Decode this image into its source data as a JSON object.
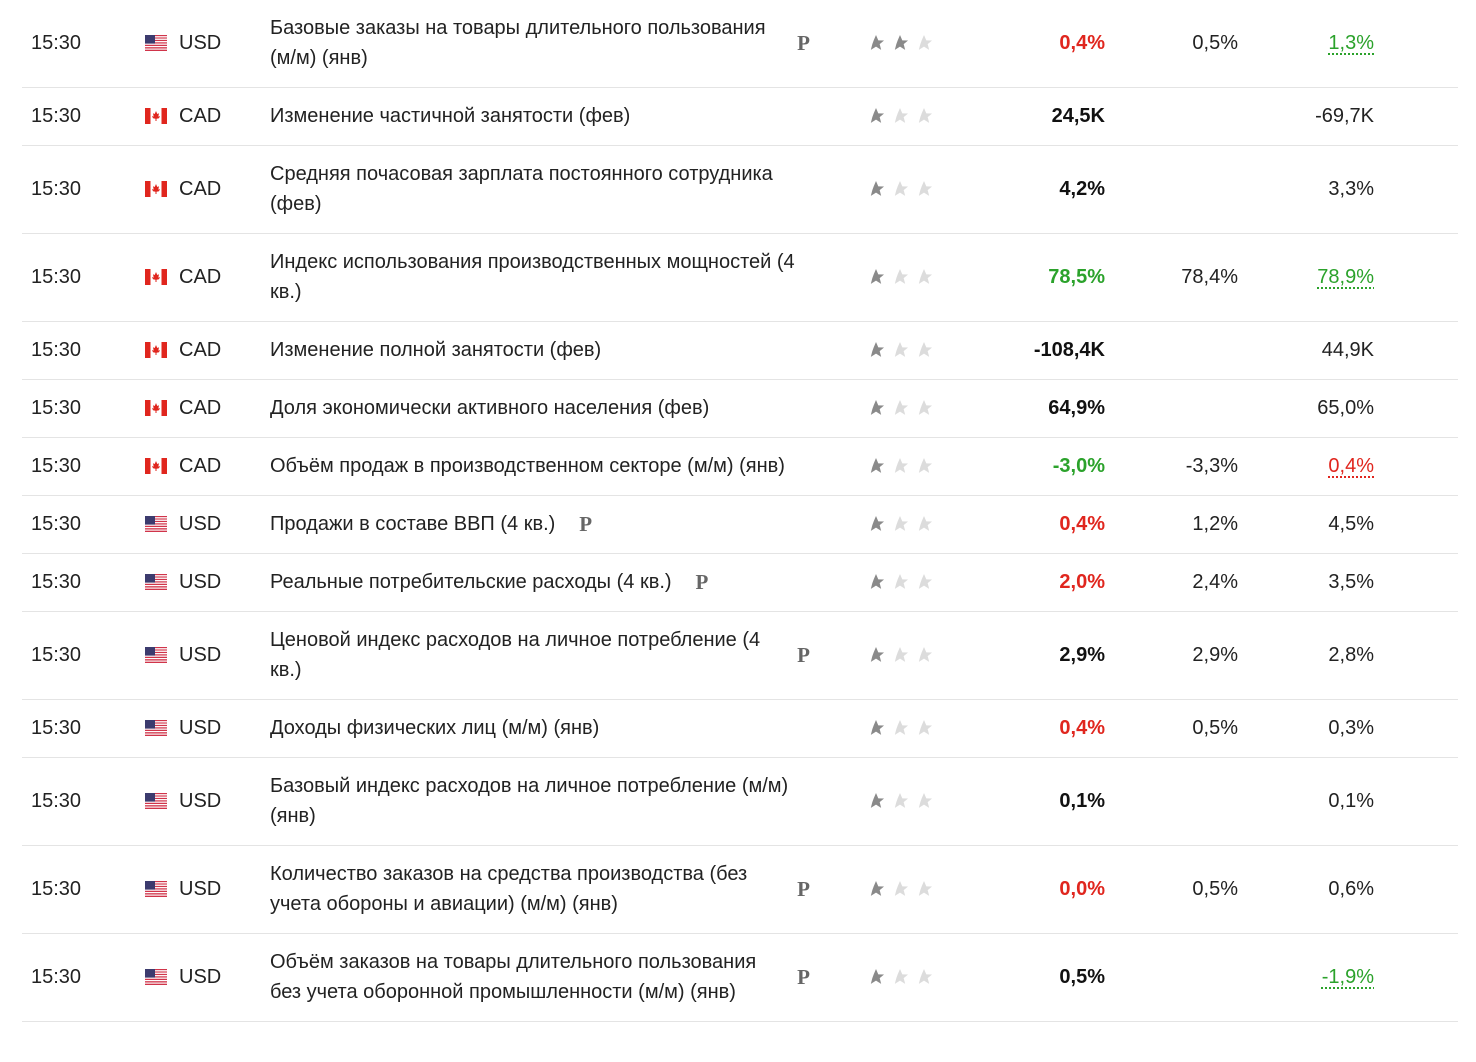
{
  "table": {
    "rows": [
      {
        "time": "15:30",
        "currency": "USD",
        "event": "Базовые заказы на товары длительного пользования (м/м) (янв)",
        "mark": "P",
        "importance": 2,
        "actual": "0,4%",
        "actual_color": "#e0261e",
        "forecast": "0,5%",
        "previous": "1,3%",
        "previous_color": "#2ba22b",
        "previous_revised": true
      },
      {
        "time": "15:30",
        "currency": "CAD",
        "event": "Изменение частичной занятости (фев)",
        "mark": null,
        "importance": 1,
        "actual": "24,5K",
        "actual_color": "#111111",
        "forecast": null,
        "previous": "-69,7K",
        "previous_color": "#222222",
        "previous_revised": false
      },
      {
        "time": "15:30",
        "currency": "CAD",
        "event": "Средняя почасовая зарплата постоянного сотрудника (фев)",
        "mark": null,
        "importance": 1,
        "actual": "4,2%",
        "actual_color": "#111111",
        "forecast": null,
        "previous": "3,3%",
        "previous_color": "#222222",
        "previous_revised": false
      },
      {
        "time": "15:30",
        "currency": "CAD",
        "event": "Индекс использования производственных мощностей (4 кв.)",
        "mark": null,
        "importance": 1,
        "actual": "78,5%",
        "actual_color": "#2ba22b",
        "forecast": "78,4%",
        "previous": "78,9%",
        "previous_color": "#2ba22b",
        "previous_revised": true
      },
      {
        "time": "15:30",
        "currency": "CAD",
        "event": "Изменение полной занятости (фев)",
        "mark": null,
        "importance": 1,
        "actual": "-108,4K",
        "actual_color": "#111111",
        "forecast": null,
        "previous": "44,9K",
        "previous_color": "#222222",
        "previous_revised": false
      },
      {
        "time": "15:30",
        "currency": "CAD",
        "event": "Доля экономически активного населения (фев)",
        "mark": null,
        "importance": 1,
        "actual": "64,9%",
        "actual_color": "#111111",
        "forecast": null,
        "previous": "65,0%",
        "previous_color": "#222222",
        "previous_revised": false
      },
      {
        "time": "15:30",
        "currency": "CAD",
        "event": "Объём продаж в производственном секторе (м/м) (янв)",
        "mark": null,
        "importance": 1,
        "actual": "-3,0%",
        "actual_color": "#2ba22b",
        "forecast": "-3,3%",
        "previous": "0,4%",
        "previous_color": "#e0261e",
        "previous_revised": true
      },
      {
        "time": "15:30",
        "currency": "USD",
        "event": "Продажи в составе ВВП (4 кв.)",
        "mark": "P",
        "importance": 1,
        "actual": "0,4%",
        "actual_color": "#e0261e",
        "forecast": "1,2%",
        "previous": "4,5%",
        "previous_color": "#222222",
        "previous_revised": false
      },
      {
        "time": "15:30",
        "currency": "USD",
        "event": "Реальные потребительские расходы (4 кв.)",
        "mark": "P",
        "importance": 1,
        "actual": "2,0%",
        "actual_color": "#e0261e",
        "forecast": "2,4%",
        "previous": "3,5%",
        "previous_color": "#222222",
        "previous_revised": false
      },
      {
        "time": "15:30",
        "currency": "USD",
        "event": "Ценовой индекс расходов на личное потребление (4 кв.)",
        "mark": "P",
        "importance": 1,
        "actual": "2,9%",
        "actual_color": "#111111",
        "forecast": "2,9%",
        "previous": "2,8%",
        "previous_color": "#222222",
        "previous_revised": false
      },
      {
        "time": "15:30",
        "currency": "USD",
        "event": "Доходы физических лиц (м/м) (янв)",
        "mark": null,
        "importance": 1,
        "actual": "0,4%",
        "actual_color": "#e0261e",
        "forecast": "0,5%",
        "previous": "0,3%",
        "previous_color": "#222222",
        "previous_revised": false
      },
      {
        "time": "15:30",
        "currency": "USD",
        "event": "Базовый индекс расходов на личное потребление (м/м) (янв)",
        "mark": null,
        "importance": 1,
        "actual": "0,1%",
        "actual_color": "#111111",
        "forecast": null,
        "previous": "0,1%",
        "previous_color": "#222222",
        "previous_revised": false
      },
      {
        "time": "15:30",
        "currency": "USD",
        "event": "Количество заказов на средства производства (без учета обороны и авиации) (м/м) (янв)",
        "mark": "P",
        "importance": 1,
        "actual": "0,0%",
        "actual_color": "#e0261e",
        "forecast": "0,5%",
        "previous": "0,6%",
        "previous_color": "#222222",
        "previous_revised": false
      },
      {
        "time": "15:30",
        "currency": "USD",
        "event": "Объём заказов на товары длительного пользования без учета оборонной промышленности (м/м) (янв)",
        "mark": "P",
        "importance": 1,
        "actual": "0,5%",
        "actual_color": "#111111",
        "forecast": null,
        "previous": "-1,9%",
        "previous_color": "#2ba22b",
        "previous_revised": true
      }
    ]
  }
}
